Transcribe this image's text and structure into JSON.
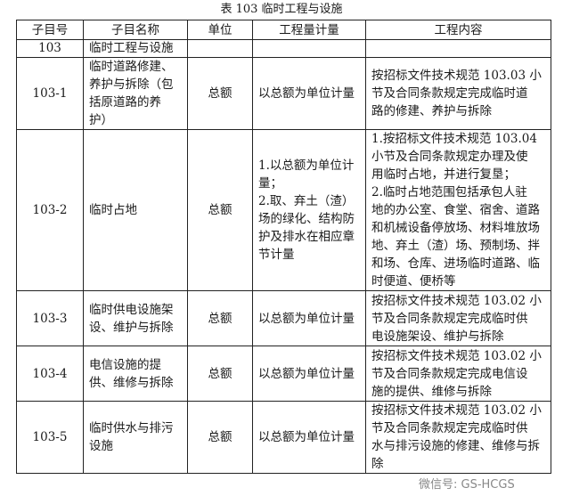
{
  "title": "表 103 临时工程与设施",
  "headers": [
    "子目号",
    "子目名称",
    "单位",
    "工程量计量",
    "工程内容"
  ],
  "rows": [
    {
      "code": "103",
      "name": "临时工程与设施",
      "unit": "",
      "measure": "",
      "content": ""
    },
    {
      "code": "103-1",
      "name": "临时道路修建、\n养护与拆除（包\n括原道路的养\n护）",
      "unit": "总额",
      "measure": "以总额为单位计量",
      "content": "按招标文件技术规范 103.03 小\n节及合同条款规定完成临时道\n路的修建、养护与拆除"
    },
    {
      "code": "103-2",
      "name": "临时占地",
      "unit": "总额",
      "measure": "1.以总额为单位计\n量；\n2.取、弃土（渣）\n场的绿化、结构防\n护及排水在相应章\n节计量",
      "content": "1.按招标文件技术规范 103.04\n小节及合同条款规定办理及使\n用临时占地，并进行复垦；\n2.临时占地范围包括承包人驻\n地的办公室、食堂、宿舍、道路\n和机械设备停放场、材料堆放场\n地、弃土（渣）场、预制场、拌\n和场、仓库、进场临时道路、临\n时便道、便桥等"
    },
    {
      "code": "103-3",
      "name": "临时供电设施架\n设、维护与拆除",
      "unit": "总额",
      "measure": "以总额为单位计量",
      "content": "按招标文件技术规范 103.02 小\n节及合同条款规定完成临时供\n电设施架设、维护与拆除"
    },
    {
      "code": "103-4",
      "name": "电信设施的提\n供、维修与拆除",
      "unit": "总额",
      "measure": "以总额为单位计量",
      "content": "按招标文件技术规范 103.02 小\n节及合同条款规定完成电信设\n施的提供、维修与拆除"
    },
    {
      "code": "103-5",
      "name": "临时供水与排污\n设施",
      "unit": "总额",
      "measure": "以总额为单位计量",
      "content": "按招标文件技术规范 103.02 小\n节及合同条款规定完成临时供\n水与排污设施的修建、维修与拆\n除"
    }
  ],
  "watermark": "微信号: GS-HCGS"
}
